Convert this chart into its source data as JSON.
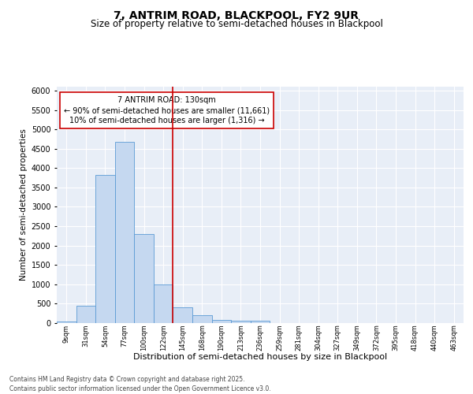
{
  "title": "7, ANTRIM ROAD, BLACKPOOL, FY2 9UR",
  "subtitle": "Size of property relative to semi-detached houses in Blackpool",
  "xlabel": "Distribution of semi-detached houses by size in Blackpool",
  "ylabel": "Number of semi-detached properties",
  "categories": [
    "9sqm",
    "31sqm",
    "54sqm",
    "77sqm",
    "100sqm",
    "122sqm",
    "145sqm",
    "168sqm",
    "190sqm",
    "213sqm",
    "236sqm",
    "259sqm",
    "281sqm",
    "304sqm",
    "327sqm",
    "349sqm",
    "372sqm",
    "395sqm",
    "418sqm",
    "440sqm",
    "463sqm"
  ],
  "values": [
    50,
    440,
    3820,
    4680,
    2290,
    990,
    410,
    200,
    90,
    70,
    70,
    0,
    0,
    0,
    0,
    0,
    0,
    0,
    0,
    0,
    0
  ],
  "bar_color": "#c5d8f0",
  "bar_edge_color": "#5b9bd5",
  "vline_x": 5.5,
  "vline_color": "#cc0000",
  "annotation_text": "7 ANTRIM ROAD: 130sqm\n← 90% of semi-detached houses are smaller (11,661)\n10% of semi-detached houses are larger (1,316) →",
  "annotation_box_color": "#cc0000",
  "ylim": [
    0,
    6100
  ],
  "yticks": [
    0,
    500,
    1000,
    1500,
    2000,
    2500,
    3000,
    3500,
    4000,
    4500,
    5000,
    5500,
    6000
  ],
  "bg_color": "#e8eef7",
  "footer_text": "Contains HM Land Registry data © Crown copyright and database right 2025.\nContains public sector information licensed under the Open Government Licence v3.0.",
  "title_fontsize": 10,
  "subtitle_fontsize": 8.5,
  "xlabel_fontsize": 8,
  "ylabel_fontsize": 7.5,
  "annotation_fontsize": 7
}
